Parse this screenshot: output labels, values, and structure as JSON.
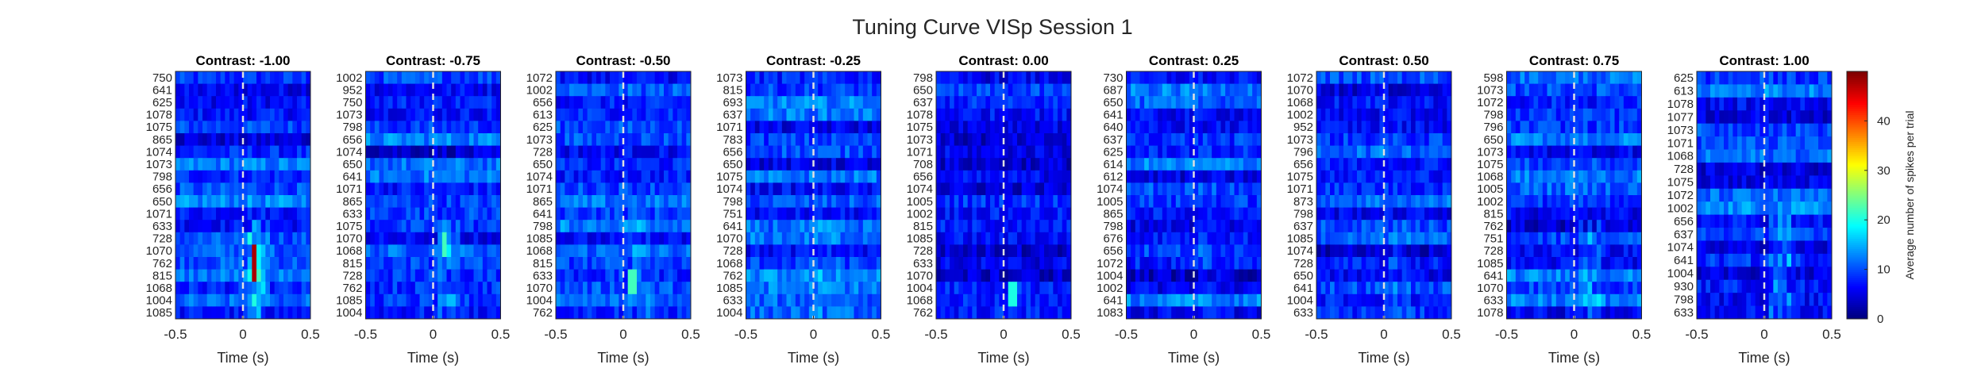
{
  "figure": {
    "title": "Tuning Curve VISp Session 1"
  },
  "colors": {
    "background": "#ffffff",
    "axis": "#262626",
    "stimulus_line": "#e0e0e0"
  },
  "chart_data": {
    "type": "heatmap",
    "colormap": "jet",
    "panels": [
      {
        "title": "Contrast: -1.00",
        "contrast": -1.0,
        "rows": [
          "750",
          "641",
          "625",
          "1078",
          "1075",
          "865",
          "1074",
          "1073",
          "798",
          "656",
          "650",
          "1071",
          "633",
          "728",
          "1070",
          "762",
          "815",
          "1068",
          "1004",
          "1085"
        ]
      },
      {
        "title": "Contrast: -0.75",
        "contrast": -0.75,
        "rows": [
          "1002",
          "952",
          "750",
          "1073",
          "798",
          "656",
          "1074",
          "650",
          "641",
          "1071",
          "865",
          "633",
          "1075",
          "1070",
          "1068",
          "815",
          "728",
          "762",
          "1085",
          "1004"
        ]
      },
      {
        "title": "Contrast: -0.50",
        "contrast": -0.5,
        "rows": [
          "1072",
          "1002",
          "656",
          "613",
          "625",
          "1073",
          "728",
          "650",
          "1074",
          "1071",
          "865",
          "641",
          "798",
          "1085",
          "1068",
          "815",
          "633",
          "1070",
          "1004",
          "762"
        ]
      },
      {
        "title": "Contrast: -0.25",
        "contrast": -0.25,
        "rows": [
          "1073",
          "815",
          "693",
          "637",
          "1071",
          "783",
          "656",
          "650",
          "1075",
          "1074",
          "798",
          "751",
          "641",
          "1070",
          "728",
          "1068",
          "762",
          "1085",
          "633",
          "1004"
        ]
      },
      {
        "title": "Contrast: 0.00",
        "contrast": 0.0,
        "rows": [
          "798",
          "650",
          "637",
          "1078",
          "1075",
          "1073",
          "1071",
          "708",
          "656",
          "1074",
          "1005",
          "1002",
          "815",
          "1085",
          "728",
          "633",
          "1070",
          "1004",
          "1068",
          "762"
        ]
      },
      {
        "title": "Contrast: 0.25",
        "contrast": 0.25,
        "rows": [
          "730",
          "687",
          "650",
          "641",
          "640",
          "637",
          "625",
          "614",
          "612",
          "1074",
          "1005",
          "865",
          "798",
          "676",
          "656",
          "1072",
          "1004",
          "1002",
          "641",
          "1083"
        ]
      },
      {
        "title": "Contrast: 0.50",
        "contrast": 0.5,
        "rows": [
          "1072",
          "1070",
          "1068",
          "1002",
          "952",
          "1073",
          "796",
          "656",
          "1075",
          "1071",
          "873",
          "798",
          "637",
          "1085",
          "1074",
          "728",
          "650",
          "641",
          "1004",
          "633"
        ]
      },
      {
        "title": "Contrast: 0.75",
        "contrast": 0.75,
        "rows": [
          "598",
          "1073",
          "1072",
          "798",
          "796",
          "650",
          "1073",
          "1075",
          "1068",
          "1005",
          "1002",
          "815",
          "762",
          "751",
          "728",
          "1085",
          "641",
          "1070",
          "633",
          "1078"
        ]
      },
      {
        "title": "Contrast: 1.00",
        "contrast": 1.0,
        "rows": [
          "625",
          "613",
          "1078",
          "1077",
          "1073",
          "1071",
          "1068",
          "728",
          "1075",
          "1072",
          "1002",
          "656",
          "637",
          "1074",
          "641",
          "1004",
          "930",
          "798",
          "633"
        ]
      }
    ],
    "x_range": [
      -0.5,
      0.5
    ],
    "x_ticks": [
      "-0.5",
      "0",
      "0.5"
    ],
    "xlabel": "Time (s)",
    "stimulus_onset": 0,
    "colorbar": {
      "label": "Average number of spikes per trial",
      "range": [
        0,
        50
      ],
      "ticks": [
        "0",
        "10",
        "20",
        "30",
        "40"
      ]
    },
    "hot_spots": [
      {
        "panel": 0,
        "rows": [
          "815",
          "762",
          "1070"
        ],
        "time": 0.08,
        "peak": 48
      },
      {
        "panel": 1,
        "rows": [
          "1070",
          "1068"
        ],
        "time": 0.09,
        "peak": 22
      },
      {
        "panel": 2,
        "rows": [
          "633",
          "1070"
        ],
        "time": 0.06,
        "peak": 22
      },
      {
        "panel": 4,
        "rows": [
          "1004",
          "1068"
        ],
        "time": 0.07,
        "peak": 20
      }
    ]
  }
}
